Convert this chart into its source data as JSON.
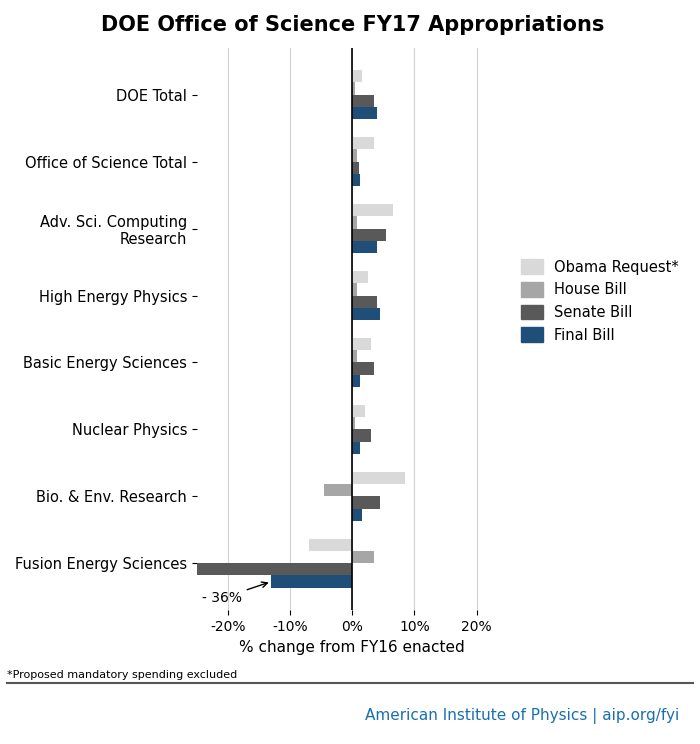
{
  "title": "DOE Office of Science FY17 Appropriations",
  "xlabel": "% change from FY16 enacted",
  "footnote": "*Proposed mandatory spending excluded",
  "footer_text": "American Institute of Physics | aip.org/fyi",
  "categories": [
    "DOE Total",
    "Office of Science Total",
    "Adv. Sci. Computing\nResearch",
    "High Energy Physics",
    "Basic Energy Sciences",
    "Nuclear Physics",
    "Bio. & Env. Research",
    "Fusion Energy Sciences"
  ],
  "series": {
    "Obama Request*": {
      "color": "#d9d9d9",
      "values": [
        1.5,
        3.5,
        6.5,
        2.5,
        3.0,
        2.0,
        8.5,
        -7.0
      ]
    },
    "House Bill": {
      "color": "#a6a6a6",
      "values": [
        0.5,
        0.8,
        0.8,
        0.8,
        0.8,
        0.5,
        -4.5,
        3.5
      ]
    },
    "Senate Bill": {
      "color": "#595959",
      "values": [
        3.5,
        1.0,
        5.5,
        4.0,
        3.5,
        3.0,
        4.5,
        -36.0
      ]
    },
    "Final Bill": {
      "color": "#1f4e79",
      "values": [
        4.0,
        1.2,
        4.0,
        4.5,
        1.2,
        1.2,
        1.5,
        -13.0
      ]
    }
  },
  "annotation_text": "- 36%",
  "xlim": [
    -25,
    25
  ],
  "xticks": [
    -20,
    -10,
    0,
    10,
    20
  ],
  "xticklabels": [
    "-20%",
    "-10%",
    "0%",
    "10%",
    "20%"
  ]
}
